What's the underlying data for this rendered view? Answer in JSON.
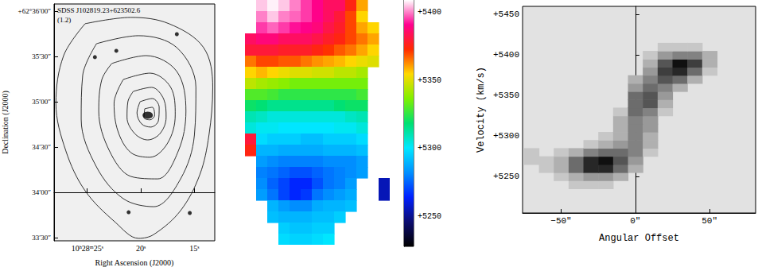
{
  "chart_data": [
    {
      "type": "contour",
      "annotations": [
        "SDSS J102819.23+623502.6",
        "(1.2)"
      ],
      "x_label": "Right Ascension (J2000)",
      "y_label": "Declination (J2000)",
      "xlim": [
        28.1,
        13.1
      ],
      "ylim": [
        -32.1,
        124.7
      ],
      "xticks": [
        {
          "value": 25,
          "label": "10ʰ28ᵐ25ˢ"
        },
        {
          "value": 20,
          "label": "20ˢ"
        },
        {
          "value": 15,
          "label": "15ˢ"
        }
      ],
      "yticks": [
        {
          "value": 120,
          "label": "+62°36′00″"
        },
        {
          "value": 90,
          "label": "35′30″"
        },
        {
          "value": 60,
          "label": "35′00″"
        },
        {
          "value": 30,
          "label": "34′30″"
        },
        {
          "value": 0,
          "label": "34′00″"
        },
        {
          "value": -30,
          "label": "33′30″"
        }
      ],
      "color": "#000000",
      "galaxy": [
        19.36,
        51.1
      ],
      "stars": [
        [
          24.29,
          89.5
        ],
        [
          22.29,
          93.7
        ],
        [
          21.14,
          -13.2
        ],
        [
          15.43,
          -13.7
        ],
        [
          16.64,
          104.7
        ]
      ],
      "contours": [
        [
          [
            25.21,
            111.6
          ],
          [
            20.93,
            115.8
          ],
          [
            17.36,
            111.6
          ],
          [
            14.14,
            95.8
          ],
          [
            13.29,
            69.5
          ],
          [
            13.64,
            37.9
          ],
          [
            14.5,
            11.6
          ],
          [
            16.29,
            -12.1
          ],
          [
            18.79,
            -27.9
          ],
          [
            20.21,
            -30.5
          ],
          [
            22.36,
            -20
          ],
          [
            25.21,
            1.1
          ],
          [
            27.0,
            27.4
          ],
          [
            27.93,
            58.9
          ],
          [
            27.21,
            90.5
          ]
        ],
        [
          [
            24.14,
            98.4
          ],
          [
            20.21,
            103.7
          ],
          [
            16.64,
            95.8
          ],
          [
            14.86,
            69.5
          ],
          [
            15.0,
            37.9
          ],
          [
            16.29,
            8.9
          ],
          [
            18.79,
            -9.5
          ],
          [
            21.64,
            -4.2
          ],
          [
            24.14,
            16.8
          ],
          [
            25.57,
            48.4
          ],
          [
            25.43,
            77.4
          ]
        ],
        [
          [
            22.71,
            85.3
          ],
          [
            19.5,
            90.5
          ],
          [
            16.64,
            80
          ],
          [
            15.79,
            53.7
          ],
          [
            16.5,
            27.4
          ],
          [
            18.43,
            8.9
          ],
          [
            20.93,
            10.5
          ],
          [
            22.93,
            27.4
          ],
          [
            23.93,
            53.7
          ],
          [
            23.64,
            74.7
          ]
        ],
        [
          [
            21.64,
            74.7
          ],
          [
            19.14,
            78.9
          ],
          [
            17.21,
            69.5
          ],
          [
            16.79,
            51.1
          ],
          [
            17.5,
            32.6
          ],
          [
            19.14,
            23.2
          ],
          [
            20.93,
            26.3
          ],
          [
            22.14,
            40.5
          ],
          [
            22.5,
            58.9
          ]
        ],
        [
          [
            20.71,
            66.8
          ],
          [
            19.0,
            69.5
          ],
          [
            17.86,
            61.6
          ],
          [
            17.64,
            49.5
          ],
          [
            18.21,
            38.9
          ],
          [
            19.36,
            34.7
          ],
          [
            20.57,
            38.9
          ],
          [
            21.29,
            49.5
          ],
          [
            21.21,
            60
          ]
        ],
        [
          [
            20.07,
            60
          ],
          [
            18.93,
            62.1
          ],
          [
            18.29,
            56.3
          ],
          [
            18.36,
            47.4
          ],
          [
            19.07,
            43.2
          ],
          [
            19.93,
            45.3
          ],
          [
            20.36,
            52.6
          ]
        ],
        [
          [
            19.64,
            55.3
          ],
          [
            18.93,
            56.3
          ],
          [
            18.71,
            51.1
          ],
          [
            19.14,
            48.0
          ],
          [
            19.71,
            49.5
          ]
        ]
      ]
    },
    {
      "type": "map",
      "cells": [
        [
          null,
          5405,
          5408,
          5405,
          5400,
          5395,
          5390,
          5385,
          5385,
          5375,
          5360,
          null,
          null
        ],
        [
          null,
          5400,
          5405,
          5400,
          5398,
          5395,
          5390,
          5385,
          5380,
          5370,
          5355,
          null,
          null
        ],
        [
          null,
          5395,
          5398,
          5395,
          5392,
          5390,
          5388,
          5382,
          5378,
          5370,
          5360,
          5355,
          null
        ],
        [
          5385,
          5388,
          5388,
          5385,
          5385,
          5385,
          5382,
          5378,
          5375,
          5370,
          5365,
          5360,
          null
        ],
        [
          5380,
          5380,
          5380,
          5378,
          5378,
          5378,
          5375,
          5372,
          5368,
          5365,
          5360,
          5355,
          null
        ],
        [
          5365,
          5370,
          5370,
          5368,
          5368,
          5365,
          5362,
          5360,
          5358,
          5355,
          5352,
          5350,
          null
        ],
        [
          5355,
          5358,
          5355,
          5352,
          5350,
          5350,
          5348,
          5348,
          5345,
          5345,
          5342,
          null,
          null
        ],
        [
          5345,
          5342,
          5340,
          5338,
          5335,
          5335,
          5335,
          5335,
          5335,
          5335,
          5335,
          null,
          null
        ],
        [
          5330,
          5330,
          5328,
          5325,
          5325,
          5325,
          5325,
          5325,
          5325,
          5325,
          5328,
          null,
          null
        ],
        [
          5320,
          5318,
          5315,
          5315,
          5315,
          5315,
          5315,
          5315,
          5318,
          5320,
          5320,
          null,
          null
        ],
        [
          5310,
          5308,
          5305,
          5305,
          5305,
          5305,
          5305,
          5305,
          5305,
          5308,
          5310,
          null,
          null
        ],
        [
          5305,
          5302,
          5302,
          5300,
          5300,
          5300,
          5300,
          5300,
          5302,
          5302,
          5305,
          null,
          null
        ],
        [
          5380,
          5298,
          5295,
          5295,
          5295,
          5292,
          5292,
          5295,
          5295,
          5295,
          5298,
          null,
          null
        ],
        [
          5375,
          5290,
          5290,
          5288,
          5288,
          5288,
          5288,
          5290,
          5290,
          5290,
          5292,
          null,
          null
        ],
        [
          null,
          5285,
          5282,
          5280,
          5280,
          5280,
          5280,
          5282,
          5282,
          5282,
          5285,
          null,
          null
        ],
        [
          null,
          5280,
          5278,
          5275,
          5272,
          5272,
          5275,
          5278,
          5280,
          5282,
          5285,
          null,
          null
        ],
        [
          null,
          5282,
          5275,
          5270,
          5265,
          5265,
          5272,
          5278,
          5280,
          5285,
          null,
          null,
          5255
        ],
        [
          null,
          5285,
          5278,
          5270,
          5265,
          5268,
          5278,
          5282,
          5285,
          5288,
          null,
          null,
          5255
        ],
        [
          null,
          null,
          5290,
          5285,
          5282,
          5282,
          5288,
          5290,
          5290,
          5292,
          null,
          null,
          null
        ],
        [
          null,
          null,
          5292,
          5290,
          5290,
          5290,
          5292,
          5292,
          5295,
          null,
          null,
          null,
          null
        ],
        [
          null,
          null,
          null,
          5295,
          5293,
          5293,
          5295,
          5295,
          null,
          null,
          null,
          null,
          null
        ],
        [
          null,
          null,
          null,
          5298,
          5296,
          5296,
          5298,
          5300,
          null,
          null,
          null,
          null,
          null
        ]
      ],
      "colorbar": {
        "lim": [
          5228,
          5409
        ],
        "ticks": [
          {
            "value": 5250,
            "label": "+5250"
          },
          {
            "value": 5300,
            "label": "+5300"
          },
          {
            "value": 5350,
            "label": "+5350"
          },
          {
            "value": 5400,
            "label": "+5400"
          }
        ]
      }
    },
    {
      "type": "heatmap",
      "x_label": "Angular Offset",
      "y_label": "Velocity (km/s)",
      "xlim": [
        -76,
        81
      ],
      "ylim": [
        5205,
        5460
      ],
      "xticks": [
        {
          "value": -50,
          "label": "−50″"
        },
        {
          "value": 0,
          "label": "0″"
        },
        {
          "value": 50,
          "label": "50″"
        }
      ],
      "yticks": [
        {
          "value": 5250,
          "label": "+5250"
        },
        {
          "value": 5300,
          "label": "+5300"
        },
        {
          "value": 5350,
          "label": "+5350"
        },
        {
          "value": 5400,
          "label": "+5400"
        },
        {
          "value": 5450,
          "label": "+5450"
        }
      ],
      "cells": [
        [
          -40,
          5240,
          1
        ],
        [
          -30,
          5240,
          1
        ],
        [
          -20,
          5240,
          1
        ],
        [
          -50,
          5250,
          1
        ],
        [
          -40,
          5250,
          2
        ],
        [
          -30,
          5250,
          3
        ],
        [
          -20,
          5250,
          3
        ],
        [
          -10,
          5250,
          2
        ],
        [
          -60,
          5260,
          1
        ],
        [
          -50,
          5260,
          2
        ],
        [
          -40,
          5260,
          5
        ],
        [
          -30,
          5260,
          8
        ],
        [
          -20,
          5260,
          8
        ],
        [
          -10,
          5260,
          5
        ],
        [
          0,
          5260,
          2
        ],
        [
          -70,
          5270,
          1
        ],
        [
          -60,
          5270,
          1
        ],
        [
          -50,
          5270,
          2
        ],
        [
          -40,
          5270,
          5
        ],
        [
          -30,
          5270,
          8
        ],
        [
          -20,
          5270,
          9
        ],
        [
          -10,
          5270,
          6
        ],
        [
          0,
          5270,
          3
        ],
        [
          -70,
          5280,
          1
        ],
        [
          -50,
          5280,
          1
        ],
        [
          -40,
          5280,
          2
        ],
        [
          -30,
          5280,
          4
        ],
        [
          -20,
          5280,
          5
        ],
        [
          -10,
          5280,
          5
        ],
        [
          0,
          5280,
          4
        ],
        [
          10,
          5280,
          1
        ],
        [
          -30,
          5290,
          1
        ],
        [
          -20,
          5290,
          2
        ],
        [
          -10,
          5290,
          3
        ],
        [
          0,
          5290,
          4
        ],
        [
          10,
          5290,
          2
        ],
        [
          -20,
          5300,
          1
        ],
        [
          -10,
          5300,
          2
        ],
        [
          0,
          5300,
          4
        ],
        [
          10,
          5300,
          2
        ],
        [
          -10,
          5310,
          2
        ],
        [
          0,
          5310,
          4
        ],
        [
          10,
          5310,
          3
        ],
        [
          -10,
          5320,
          2
        ],
        [
          0,
          5320,
          4
        ],
        [
          10,
          5320,
          3
        ],
        [
          -10,
          5330,
          1
        ],
        [
          0,
          5330,
          5
        ],
        [
          10,
          5330,
          4
        ],
        [
          20,
          5330,
          1
        ],
        [
          0,
          5340,
          5
        ],
        [
          10,
          5340,
          6
        ],
        [
          20,
          5340,
          2
        ],
        [
          0,
          5350,
          5
        ],
        [
          10,
          5350,
          6
        ],
        [
          20,
          5350,
          3
        ],
        [
          0,
          5360,
          3
        ],
        [
          10,
          5360,
          5
        ],
        [
          20,
          5360,
          4
        ],
        [
          30,
          5360,
          2
        ],
        [
          0,
          5370,
          2
        ],
        [
          10,
          5370,
          4
        ],
        [
          20,
          5370,
          6
        ],
        [
          30,
          5370,
          5
        ],
        [
          40,
          5370,
          2
        ],
        [
          10,
          5380,
          3
        ],
        [
          20,
          5380,
          7
        ],
        [
          30,
          5380,
          8
        ],
        [
          40,
          5380,
          5
        ],
        [
          50,
          5380,
          1
        ],
        [
          10,
          5390,
          2
        ],
        [
          20,
          5390,
          6
        ],
        [
          30,
          5390,
          9
        ],
        [
          40,
          5390,
          7
        ],
        [
          50,
          5390,
          2
        ],
        [
          10,
          5400,
          1
        ],
        [
          20,
          5400,
          3
        ],
        [
          30,
          5400,
          4
        ],
        [
          40,
          5400,
          4
        ],
        [
          50,
          5400,
          2
        ],
        [
          20,
          5410,
          1
        ],
        [
          30,
          5410,
          1
        ],
        [
          40,
          5410,
          1
        ]
      ]
    }
  ]
}
